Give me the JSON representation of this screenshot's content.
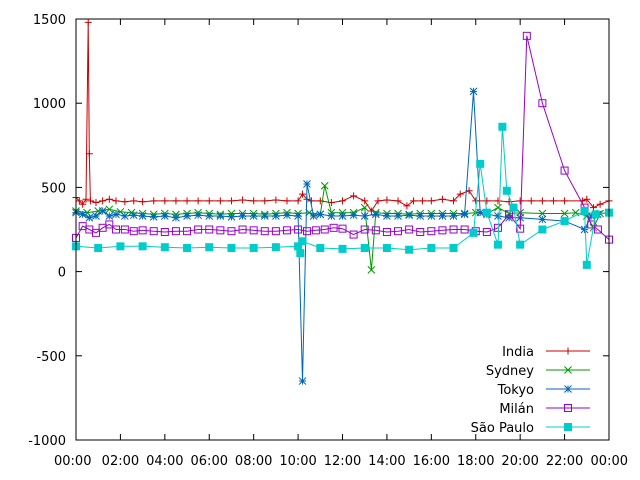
{
  "chart_data": {
    "type": "line",
    "title": "",
    "xlabel": "",
    "ylabel": "",
    "xlim": [
      0,
      24
    ],
    "ylim": [
      -1000,
      1500
    ],
    "grid": false,
    "legend_position": "bottom-right",
    "yticks": [
      -1000,
      -500,
      0,
      500,
      1000,
      1500
    ],
    "ytick_labels": [
      "-1000",
      "-500",
      "0",
      "500",
      "1000",
      "1500"
    ],
    "xticks": [
      0,
      2,
      4,
      6,
      8,
      10,
      12,
      14,
      16,
      18,
      20,
      22,
      24
    ],
    "xtick_labels": [
      "00:00",
      "02:00",
      "04:00",
      "06:00",
      "08:00",
      "10:00",
      "12:00",
      "14:00",
      "16:00",
      "18:00",
      "20:00",
      "22:00",
      "00:00"
    ],
    "series": [
      {
        "name": "India",
        "color": "#cc0000",
        "marker": "plus",
        "points": [
          [
            0,
            440
          ],
          [
            0.15,
            420
          ],
          [
            0.3,
            400
          ],
          [
            0.45,
            430
          ],
          [
            0.55,
            1480
          ],
          [
            0.6,
            700
          ],
          [
            0.65,
            420
          ],
          [
            0.9,
            410
          ],
          [
            1.2,
            420
          ],
          [
            1.5,
            430
          ],
          [
            1.8,
            420
          ],
          [
            2.2,
            415
          ],
          [
            2.6,
            420
          ],
          [
            3.0,
            415
          ],
          [
            3.5,
            420
          ],
          [
            4.0,
            420
          ],
          [
            4.5,
            420
          ],
          [
            5.0,
            420
          ],
          [
            5.5,
            420
          ],
          [
            6.0,
            420
          ],
          [
            6.5,
            420
          ],
          [
            7.0,
            420
          ],
          [
            7.5,
            425
          ],
          [
            8.0,
            420
          ],
          [
            8.5,
            420
          ],
          [
            9.0,
            425
          ],
          [
            9.5,
            420
          ],
          [
            10.0,
            420
          ],
          [
            10.2,
            460
          ],
          [
            10.4,
            430
          ],
          [
            10.6,
            420
          ],
          [
            11.0,
            420
          ],
          [
            11.5,
            410
          ],
          [
            12.0,
            420
          ],
          [
            12.5,
            450
          ],
          [
            13.0,
            420
          ],
          [
            13.3,
            360
          ],
          [
            13.6,
            420
          ],
          [
            14.0,
            425
          ],
          [
            14.5,
            420
          ],
          [
            14.9,
            390
          ],
          [
            15.2,
            420
          ],
          [
            15.6,
            420
          ],
          [
            16.0,
            420
          ],
          [
            16.5,
            430
          ],
          [
            17.0,
            420
          ],
          [
            17.3,
            460
          ],
          [
            17.7,
            480
          ],
          [
            18.0,
            420
          ],
          [
            18.5,
            420
          ],
          [
            19.0,
            420
          ],
          [
            19.5,
            415
          ],
          [
            20.0,
            420
          ],
          [
            20.5,
            420
          ],
          [
            21.0,
            420
          ],
          [
            21.5,
            420
          ],
          [
            22.0,
            420
          ],
          [
            22.8,
            420
          ],
          [
            23.0,
            430
          ],
          [
            23.3,
            380
          ],
          [
            23.6,
            400
          ],
          [
            24.0,
            420
          ]
        ]
      },
      {
        "name": "Sydney",
        "color": "#009900",
        "marker": "cross",
        "points": [
          [
            0,
            360
          ],
          [
            0.5,
            350
          ],
          [
            1.0,
            360
          ],
          [
            1.5,
            370
          ],
          [
            2.0,
            355
          ],
          [
            2.5,
            350
          ],
          [
            3.0,
            345
          ],
          [
            3.5,
            340
          ],
          [
            4.0,
            345
          ],
          [
            4.5,
            340
          ],
          [
            5.0,
            345
          ],
          [
            5.5,
            350
          ],
          [
            6.0,
            345
          ],
          [
            6.5,
            340
          ],
          [
            7.0,
            345
          ],
          [
            7.5,
            345
          ],
          [
            8.0,
            345
          ],
          [
            8.5,
            340
          ],
          [
            9.0,
            345
          ],
          [
            9.5,
            350
          ],
          [
            10.0,
            345
          ],
          [
            10.5,
            350
          ],
          [
            11.0,
            340
          ],
          [
            11.2,
            510
          ],
          [
            11.5,
            350
          ],
          [
            12.0,
            350
          ],
          [
            12.5,
            350
          ],
          [
            13.0,
            380
          ],
          [
            13.3,
            10
          ],
          [
            13.5,
            350
          ],
          [
            14.0,
            345
          ],
          [
            14.5,
            345
          ],
          [
            15.0,
            340
          ],
          [
            15.5,
            345
          ],
          [
            16.0,
            345
          ],
          [
            16.5,
            345
          ],
          [
            17.0,
            345
          ],
          [
            17.5,
            345
          ],
          [
            18.0,
            350
          ],
          [
            18.5,
            345
          ],
          [
            19.0,
            380
          ],
          [
            19.5,
            345
          ],
          [
            20.0,
            350
          ],
          [
            21.0,
            345
          ],
          [
            22.0,
            345
          ],
          [
            22.5,
            350
          ],
          [
            23.0,
            330
          ],
          [
            23.3,
            260
          ],
          [
            23.6,
            345
          ],
          [
            24.0,
            350
          ]
        ]
      },
      {
        "name": "Tokyo",
        "color": "#0066bb",
        "marker": "star",
        "points": [
          [
            0,
            350
          ],
          [
            0.3,
            340
          ],
          [
            0.6,
            320
          ],
          [
            0.9,
            330
          ],
          [
            1.2,
            360
          ],
          [
            1.5,
            330
          ],
          [
            1.8,
            340
          ],
          [
            2.2,
            330
          ],
          [
            2.6,
            335
          ],
          [
            3.0,
            330
          ],
          [
            3.5,
            325
          ],
          [
            4.0,
            330
          ],
          [
            4.5,
            320
          ],
          [
            5.0,
            330
          ],
          [
            5.5,
            335
          ],
          [
            6.0,
            330
          ],
          [
            6.5,
            330
          ],
          [
            7.0,
            325
          ],
          [
            7.5,
            330
          ],
          [
            8.0,
            330
          ],
          [
            8.5,
            330
          ],
          [
            9.0,
            330
          ],
          [
            9.5,
            335
          ],
          [
            10.0,
            330
          ],
          [
            10.2,
            -650
          ],
          [
            10.4,
            520
          ],
          [
            10.7,
            330
          ],
          [
            11.0,
            340
          ],
          [
            11.5,
            330
          ],
          [
            12.0,
            330
          ],
          [
            12.5,
            335
          ],
          [
            13.0,
            330
          ],
          [
            13.5,
            340
          ],
          [
            14.0,
            330
          ],
          [
            14.5,
            330
          ],
          [
            15.0,
            335
          ],
          [
            15.5,
            330
          ],
          [
            16.0,
            330
          ],
          [
            16.5,
            330
          ],
          [
            17.0,
            330
          ],
          [
            17.5,
            340
          ],
          [
            17.9,
            1070
          ],
          [
            18.2,
            350
          ],
          [
            18.5,
            340
          ],
          [
            19.0,
            330
          ],
          [
            19.5,
            320
          ],
          [
            20.0,
            320
          ],
          [
            21.0,
            310
          ],
          [
            22.0,
            300
          ],
          [
            22.9,
            250
          ],
          [
            23.2,
            330
          ],
          [
            23.5,
            340
          ],
          [
            24.0,
            350
          ]
        ]
      },
      {
        "name": "Milán",
        "color": "#9900cc",
        "marker": "square",
        "points": [
          [
            0,
            200
          ],
          [
            0.3,
            270
          ],
          [
            0.6,
            250
          ],
          [
            0.9,
            230
          ],
          [
            1.2,
            260
          ],
          [
            1.5,
            280
          ],
          [
            1.8,
            250
          ],
          [
            2.2,
            250
          ],
          [
            2.6,
            240
          ],
          [
            3.0,
            245
          ],
          [
            3.5,
            240
          ],
          [
            4.0,
            235
          ],
          [
            4.5,
            240
          ],
          [
            5.0,
            240
          ],
          [
            5.5,
            250
          ],
          [
            6.0,
            250
          ],
          [
            6.5,
            245
          ],
          [
            7.0,
            240
          ],
          [
            7.5,
            250
          ],
          [
            8.0,
            245
          ],
          [
            8.5,
            240
          ],
          [
            9.0,
            240
          ],
          [
            9.5,
            245
          ],
          [
            10.0,
            250
          ],
          [
            10.4,
            240
          ],
          [
            10.8,
            245
          ],
          [
            11.2,
            250
          ],
          [
            11.6,
            260
          ],
          [
            12.0,
            255
          ],
          [
            12.5,
            220
          ],
          [
            13.0,
            250
          ],
          [
            13.5,
            245
          ],
          [
            14.0,
            235
          ],
          [
            14.5,
            240
          ],
          [
            15.0,
            250
          ],
          [
            15.5,
            235
          ],
          [
            16.0,
            240
          ],
          [
            16.5,
            245
          ],
          [
            17.0,
            250
          ],
          [
            17.5,
            250
          ],
          [
            18.0,
            240
          ],
          [
            18.5,
            235
          ],
          [
            19.0,
            260
          ],
          [
            19.5,
            340
          ],
          [
            20.0,
            255
          ],
          [
            20.3,
            1400
          ],
          [
            21.0,
            1000
          ],
          [
            22.0,
            600
          ],
          [
            22.9,
            380
          ],
          [
            23.2,
            280
          ],
          [
            23.5,
            250
          ],
          [
            24.0,
            190
          ]
        ]
      },
      {
        "name": "São Paulo",
        "color": "#00cccc",
        "marker": "filled-square",
        "points": [
          [
            0,
            150
          ],
          [
            1.0,
            140
          ],
          [
            2.0,
            150
          ],
          [
            3.0,
            150
          ],
          [
            4.0,
            145
          ],
          [
            5.0,
            140
          ],
          [
            6.0,
            145
          ],
          [
            7.0,
            140
          ],
          [
            8.0,
            140
          ],
          [
            9.0,
            145
          ],
          [
            10.0,
            150
          ],
          [
            10.1,
            110
          ],
          [
            10.2,
            180
          ],
          [
            11.0,
            140
          ],
          [
            12.0,
            135
          ],
          [
            13.0,
            140
          ],
          [
            14.0,
            140
          ],
          [
            15.0,
            130
          ],
          [
            16.0,
            140
          ],
          [
            17.0,
            140
          ],
          [
            17.9,
            230
          ],
          [
            18.2,
            640
          ],
          [
            18.5,
            350
          ],
          [
            19.0,
            160
          ],
          [
            19.2,
            860
          ],
          [
            19.4,
            480
          ],
          [
            19.7,
            380
          ],
          [
            20.0,
            160
          ],
          [
            21.0,
            250
          ],
          [
            22.0,
            300
          ],
          [
            22.9,
            360
          ],
          [
            23.0,
            40
          ],
          [
            23.4,
            340
          ],
          [
            24.0,
            350
          ]
        ]
      }
    ]
  }
}
